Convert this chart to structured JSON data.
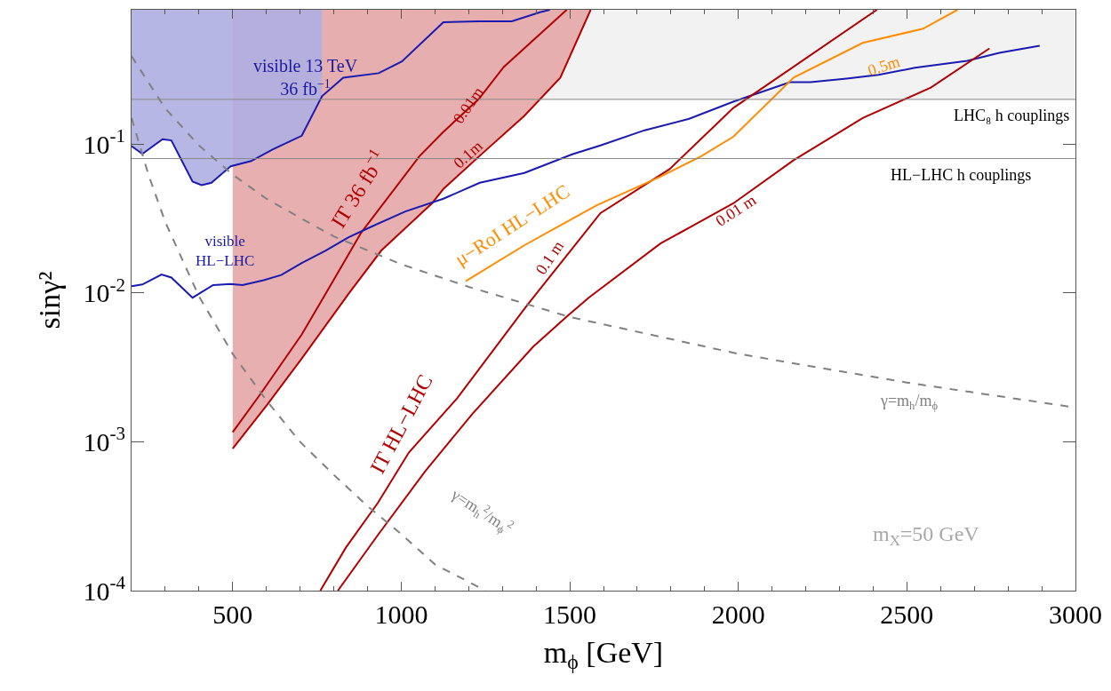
{
  "chart_data": {
    "type": "line",
    "xlabel": "m$_{ϕ}$ [GeV]",
    "ylabel": "sinγ²",
    "xlim": [
      200,
      3000
    ],
    "xticks": [
      500,
      1000,
      1500,
      2000,
      2500,
      3000
    ],
    "ylim": [
      0.0001,
      0.8
    ],
    "log": "y",
    "yticks": [
      {
        "value": 0.0001,
        "label": "10$^{-4}$"
      },
      {
        "value": 0.001,
        "label": "10$^{-3}$"
      },
      {
        "value": 0.01,
        "label": "10$^{-2}$"
      },
      {
        "value": 0.1,
        "label": "10$^{-1}$"
      }
    ],
    "grid": false,
    "bands": [
      {
        "axis": "y",
        "from": 0.2,
        "to": 0.8,
        "color": "#f2f2f2"
      }
    ],
    "ref_lines": [
      {
        "axis": "y",
        "value": 0.2,
        "label": "LHC₈ h couplings",
        "color": "#888888"
      },
      {
        "axis": "y",
        "value": 0.08,
        "label": "HL−LHC h couplings",
        "color": "#888888"
      }
    ],
    "series": [
      {
        "color": "#b20000",
        "x": [
          500,
          602,
          705,
          847,
          941,
          1091,
          1125,
          1244,
          1365,
          1472,
          1562
        ],
        "values": [
          0.0009,
          0.00177,
          0.00363,
          0.0101,
          0.0193,
          0.04,
          0.05,
          0.088,
          0.155,
          0.28,
          0.8
        ],
        "lower": [
          0.0009,
          0.00177,
          0.00363,
          0.0101,
          0.0193,
          0.04,
          0.05,
          0.088,
          0.155,
          0.28,
          0.8
        ],
        "upper": [
          0.8,
          0.8,
          0.8,
          0.8,
          0.8,
          0.8,
          0.8,
          0.8,
          0.8,
          0.8,
          0.8
        ]
      },
      {
        "color": "#1a1ab0",
        "x": [
          200,
          232,
          292,
          318,
          381,
          408,
          437,
          494,
          555,
          618,
          705,
          765,
          828,
          933,
          1002,
          1125,
          1230,
          1328,
          1412,
          1441
        ],
        "values": [
          0.097,
          0.086,
          0.108,
          0.106,
          0.056,
          0.053,
          0.055,
          0.071,
          0.077,
          0.092,
          0.114,
          0.21,
          0.28,
          0.3,
          0.36,
          0.66,
          0.67,
          0.67,
          0.77,
          0.8
        ],
        "lower": [
          0.097,
          0.086,
          0.108,
          0.106,
          0.056,
          0.053,
          0.055,
          0.071,
          0.077,
          0.092,
          0.114,
          0.21,
          null,
          null,
          null,
          null,
          null,
          null,
          null,
          null
        ],
        "upper": [
          0.8,
          0.8,
          0.8,
          0.8,
          0.8,
          0.8,
          0.8,
          0.8,
          0.8,
          0.8,
          0.8,
          0.8,
          null,
          null,
          null,
          null,
          null,
          null,
          null,
          null
        ]
      },
      {
        "color": "#b20000",
        "x": [
          500,
          584,
          705,
          778,
          881,
          1054,
          1125,
          1230,
          1304,
          1491
        ],
        "values": [
          0.00116,
          0.00212,
          0.00527,
          0.0101,
          0.0254,
          0.083,
          0.121,
          0.201,
          0.33,
          0.8
        ]
      },
      {
        "color": "#1a1ab0",
        "x": [
          200,
          232,
          289,
          318,
          381,
          442,
          494,
          529,
          592,
          644,
          705,
          776,
          844,
          907,
          1012,
          1125,
          1233,
          1365,
          1507,
          1591,
          1722,
          1854,
          1985,
          2153,
          2214,
          2321,
          2416,
          2524,
          2679,
          2774,
          2894
        ],
        "values": [
          0.0111,
          0.0114,
          0.0133,
          0.0127,
          0.0093,
          0.0113,
          0.0115,
          0.0113,
          0.0122,
          0.0132,
          0.0159,
          0.0193,
          0.0237,
          0.0276,
          0.0353,
          0.043,
          0.055,
          0.064,
          0.0855,
          0.098,
          0.124,
          0.148,
          0.193,
          0.261,
          0.261,
          0.276,
          0.292,
          0.326,
          0.363,
          0.411,
          0.459
        ]
      },
      {
        "color": "#b20000",
        "x": [
          760,
          836,
          931,
          1023,
          1165,
          1372,
          1591,
          1796,
          1985,
          2411
        ],
        "values": [
          0.0001,
          0.000195,
          0.00039,
          0.00085,
          0.00195,
          0.0082,
          0.0344,
          0.068,
          0.175,
          0.8
        ]
      },
      {
        "color": "#b20000",
        "x": [
          812,
          931,
          1070,
          1212,
          1391,
          1493,
          1556,
          1769,
          1985,
          2164,
          2369,
          2571,
          2745
        ],
        "values": [
          0.0001,
          0.000237,
          0.00063,
          0.00155,
          0.00435,
          0.007,
          0.0093,
          0.0215,
          0.04,
          0.078,
          0.15,
          0.24,
          0.44
        ]
      },
      {
        "color": "#ff8c00",
        "x": [
          1191,
          1365,
          1580,
          1769,
          1890,
          1985,
          2164,
          2369,
          2548,
          2650
        ],
        "values": [
          0.012,
          0.0209,
          0.0389,
          0.0605,
          0.083,
          0.112,
          0.28,
          0.479,
          0.597,
          0.8
        ]
      },
      {
        "color": "#808080",
        "line_style": "dashed",
        "x": [
          200,
          300,
          400,
          500,
          600,
          700,
          800,
          1000,
          1200,
          1500,
          2000,
          2500,
          3000
        ],
        "values": [
          0.39,
          0.174,
          0.098,
          0.0625,
          0.043,
          0.032,
          0.024,
          0.0156,
          0.011,
          0.0069,
          0.0039,
          0.0025,
          0.0017
        ]
      },
      {
        "color": "#808080",
        "line_style": "dashed",
        "x": [
          200,
          250,
          300,
          400,
          500,
          600,
          700,
          800,
          900,
          1000,
          1100,
          1250
        ],
        "values": [
          0.15,
          0.0625,
          0.03,
          0.0095,
          0.0039,
          0.0019,
          0.001,
          0.0006,
          0.00037,
          0.00024,
          0.00015,
          0.0001
        ]
      }
    ],
    "annotations": [
      "visible 13 TeV\n36 fb$^{−1}$",
      "IT 36 fb$^{−1}$",
      "0.01m",
      "0.1m",
      "0.1 m",
      "0.01 m",
      "0.5m",
      "μ−RoI HL−LHC",
      "IT HL−LHC",
      "visible\nHL−LHC",
      "γ=m$_{h}$/m$_{ϕ}$",
      "γ=m$_{h}$$^{2}$/m$_{ϕ}$$^{2}$",
      "m$_{X}$=50 GeV"
    ]
  }
}
